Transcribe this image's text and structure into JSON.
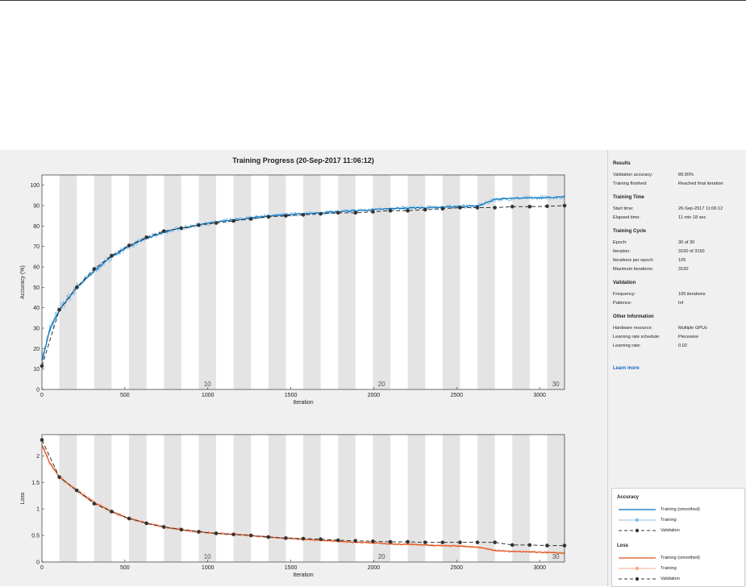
{
  "chart_data": {
    "type": "line",
    "title": "Training Progress (20-Sep-2017 11:06:12)",
    "epochs": 30,
    "iterations_per_epoch": 105,
    "epoch_labels": [
      "10",
      "20",
      "30"
    ],
    "accuracy": {
      "ylabel": "Accuracy (%)",
      "xlabel": "Iteration",
      "xlim": [
        0,
        3150
      ],
      "ylim": [
        0,
        105
      ],
      "xticks": [
        0,
        500,
        1000,
        1500,
        2000,
        2500,
        3000
      ],
      "yticks": [
        0,
        10,
        20,
        30,
        40,
        50,
        60,
        70,
        80,
        90,
        100
      ],
      "series": [
        {
          "name": "Training (smoothed)",
          "x": [
            0,
            50,
            105,
            210,
            315,
            420,
            525,
            630,
            735,
            840,
            945,
            1050,
            1155,
            1260,
            1365,
            1470,
            1575,
            1680,
            1785,
            1890,
            1995,
            2100,
            2205,
            2310,
            2415,
            2520,
            2625,
            2730,
            2835,
            2940,
            3045,
            3150
          ],
          "values": [
            14,
            30,
            39,
            50,
            58,
            65,
            70,
            74,
            77,
            79,
            80.5,
            82,
            83,
            84,
            85,
            85.5,
            86,
            86.5,
            87,
            87.5,
            88,
            88.5,
            88.8,
            89,
            89.3,
            89.6,
            89.8,
            93,
            93.5,
            93.8,
            94,
            94.2
          ]
        },
        {
          "name": "Validation",
          "x": [
            0,
            105,
            210,
            315,
            420,
            525,
            630,
            735,
            840,
            945,
            1050,
            1155,
            1260,
            1365,
            1470,
            1575,
            1680,
            1785,
            1890,
            1995,
            2100,
            2205,
            2310,
            2415,
            2520,
            2625,
            2730,
            2835,
            2940,
            3045,
            3150
          ],
          "values": [
            11.5,
            39,
            50,
            59,
            65.5,
            70.5,
            74.5,
            77.5,
            79,
            80.5,
            81.5,
            82.5,
            83.5,
            84.5,
            85,
            85.5,
            86,
            86.5,
            86.5,
            87,
            87.5,
            87.5,
            88,
            88.5,
            89,
            89,
            89,
            89.5,
            89.5,
            89.7,
            90
          ]
        }
      ]
    },
    "loss": {
      "ylabel": "Loss",
      "xlabel": "Iteration",
      "xlim": [
        0,
        3150
      ],
      "ylim": [
        0,
        2.4
      ],
      "xticks": [
        0,
        500,
        1000,
        1500,
        2000,
        2500,
        3000
      ],
      "yticks": [
        0,
        0.5,
        1,
        1.5,
        2
      ],
      "series": [
        {
          "name": "Training (smoothed)",
          "x": [
            0,
            50,
            105,
            210,
            315,
            420,
            525,
            630,
            735,
            840,
            945,
            1050,
            1155,
            1260,
            1365,
            1470,
            1575,
            1680,
            1785,
            1890,
            1995,
            2100,
            2205,
            2310,
            2415,
            2520,
            2625,
            2730,
            2835,
            2940,
            3045,
            3150
          ],
          "values": [
            2.2,
            1.85,
            1.6,
            1.35,
            1.12,
            0.95,
            0.82,
            0.73,
            0.66,
            0.61,
            0.57,
            0.54,
            0.52,
            0.5,
            0.47,
            0.45,
            0.43,
            0.41,
            0.39,
            0.37,
            0.36,
            0.34,
            0.33,
            0.32,
            0.31,
            0.3,
            0.28,
            0.22,
            0.2,
            0.19,
            0.18,
            0.17
          ]
        },
        {
          "name": "Validation",
          "x": [
            0,
            105,
            210,
            315,
            420,
            525,
            630,
            735,
            840,
            945,
            1050,
            1155,
            1260,
            1365,
            1470,
            1575,
            1680,
            1785,
            1890,
            1995,
            2100,
            2205,
            2310,
            2415,
            2520,
            2625,
            2730,
            2835,
            2940,
            3045,
            3150
          ],
          "values": [
            2.3,
            1.6,
            1.35,
            1.1,
            0.95,
            0.82,
            0.73,
            0.66,
            0.61,
            0.57,
            0.54,
            0.52,
            0.5,
            0.47,
            0.45,
            0.44,
            0.43,
            0.41,
            0.4,
            0.39,
            0.38,
            0.38,
            0.37,
            0.37,
            0.37,
            0.37,
            0.37,
            0.32,
            0.32,
            0.31,
            0.31
          ]
        }
      ]
    }
  },
  "results": {
    "title": "Results",
    "rows": [
      {
        "k": "Validation accuracy:",
        "v": "89.90%"
      },
      {
        "k": "Training finished:",
        "v": "Reached final iteration"
      }
    ]
  },
  "training_time": {
    "title": "Training Time",
    "rows": [
      {
        "k": "Start time:",
        "v": "20-Sep-2017 11:06:12"
      },
      {
        "k": "Elapsed time:",
        "v": "11 min 18 sec"
      }
    ]
  },
  "training_cycle": {
    "title": "Training Cycle",
    "rows": [
      {
        "k": "Epoch:",
        "v": "30 of 30"
      },
      {
        "k": "Iteration:",
        "v": "3150 of 3150"
      },
      {
        "k": "Iterations per epoch:",
        "v": "105"
      },
      {
        "k": "Maximum iterations:",
        "v": "3150"
      }
    ]
  },
  "validation": {
    "title": "Validation",
    "rows": [
      {
        "k": "Frequency:",
        "v": "105 iterations"
      },
      {
        "k": "Patience:",
        "v": "Inf"
      }
    ]
  },
  "other_information": {
    "title": "Other Information",
    "rows": [
      {
        "k": "Hardware resource:",
        "v": "Multiple GPUs"
      },
      {
        "k": "Learning rate schedule:",
        "v": "Piecewise"
      },
      {
        "k": "Learning rate:",
        "v": "0.02"
      }
    ]
  },
  "learn_more": "Learn more",
  "legend": {
    "accuracy_title": "Accuracy",
    "loss_title": "Loss",
    "training_smoothed": "Training (smoothed)",
    "training": "Training",
    "validation": "Validation"
  },
  "colors": {
    "accuracy_smoothed": "#0072bd",
    "accuracy_raw": "#88c0e8",
    "loss_smoothed": "#e0501a",
    "loss_raw": "#f4a98a",
    "validation": "#333333",
    "epoch_band": "#e4e4e4"
  }
}
